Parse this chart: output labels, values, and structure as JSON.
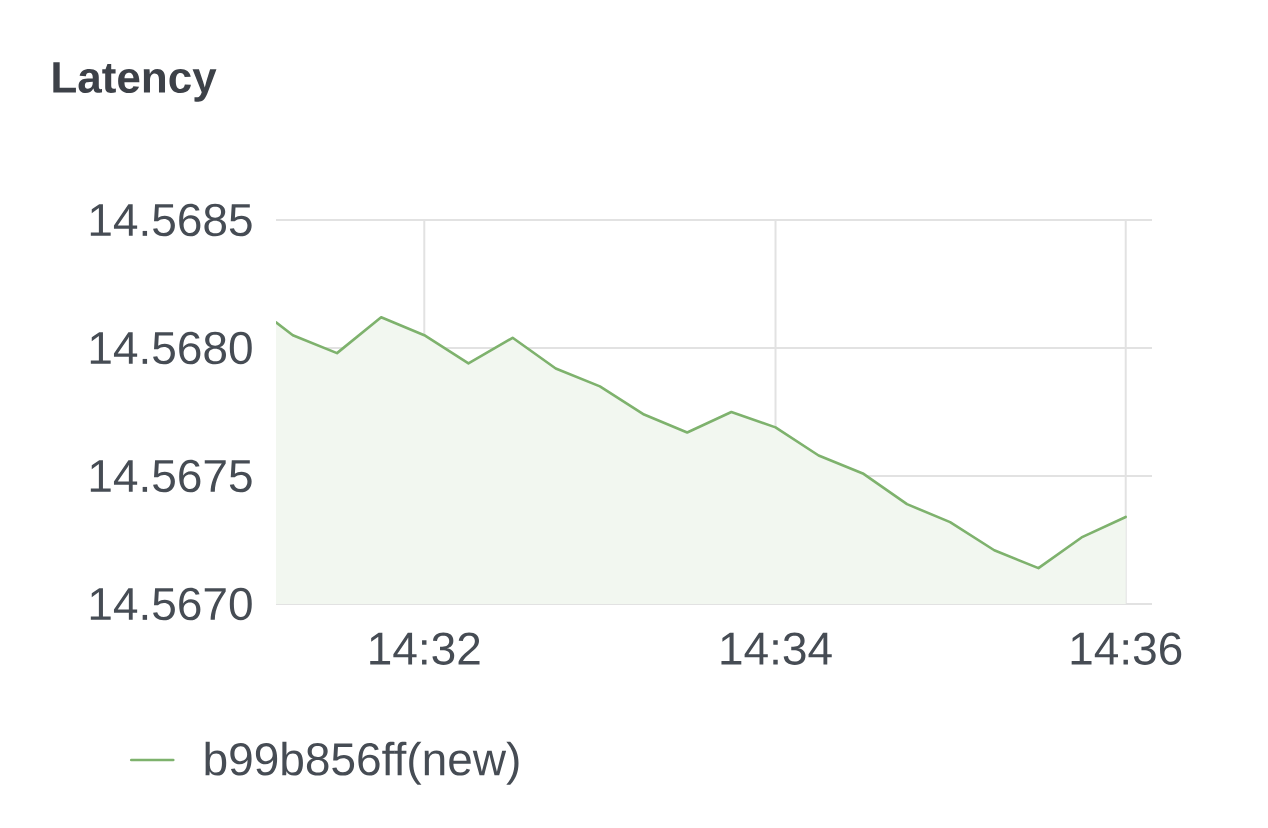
{
  "chart_data": {
    "type": "area",
    "title": "Latency",
    "x": [
      14.5192,
      14.5208,
      14.525,
      14.5292,
      14.5333,
      14.5375,
      14.5417,
      14.5458,
      14.55,
      14.5542,
      14.5583,
      14.5625,
      14.5667,
      14.5708,
      14.575,
      14.5792,
      14.5833,
      14.5875,
      14.5917,
      14.5958,
      14.6
    ],
    "series": [
      {
        "name": "b99b856ff(new)",
        "color": "#7eb26d",
        "values": [
          14.5681,
          14.56805,
          14.56798,
          14.56812,
          14.56805,
          14.56794,
          14.56804,
          14.56792,
          14.56785,
          14.56774,
          14.56767,
          14.56775,
          14.56769,
          14.56758,
          14.56751,
          14.56739,
          14.56732,
          14.56721,
          14.56714,
          14.56726,
          14.56734
        ]
      }
    ],
    "xlim": [
      14.5192,
      14.6025
    ],
    "xticks": [
      {
        "value": 14.5333,
        "label": "14:32"
      },
      {
        "value": 14.5667,
        "label": "14:34"
      },
      {
        "value": 14.6,
        "label": "14:36"
      }
    ],
    "ylim": [
      14.567,
      14.5685
    ],
    "yticks": [
      {
        "value": 14.567,
        "label": "14.5670"
      },
      14.5675,
      {
        "value": 14.568,
        "label": "14.5680"
      },
      14.5685
    ],
    "grid": true,
    "legend": "bottom"
  }
}
